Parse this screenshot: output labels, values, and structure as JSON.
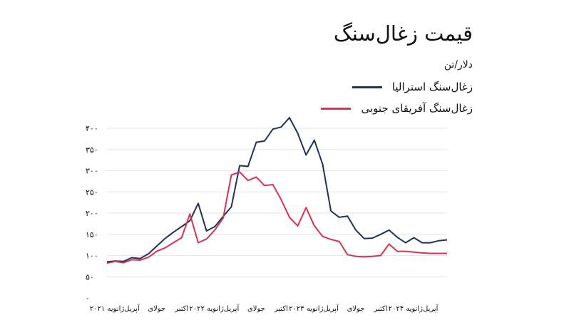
{
  "chart_data": {
    "type": "line",
    "title": "قیمت زغال‌سنگ",
    "unit": "دلار/تن",
    "ylim": [
      0,
      400
    ],
    "y_ticks": [
      "۰",
      "۵۰",
      "۱۰۰",
      "۱۵۰",
      "۲۰۰",
      "۲۵۰",
      "۳۰۰",
      "۳۵۰",
      "۴۰۰"
    ],
    "grid": true,
    "legend_position": "top-right",
    "x_ticks": [
      {
        "label": "ژانویه ۲۰۲۱",
        "x": 0
      },
      {
        "label": "آپریل",
        "x": 3
      },
      {
        "label": "جولای",
        "x": 6
      },
      {
        "label": "اکتبر",
        "x": 9
      },
      {
        "label": "ژانویه ۲۰۲۲",
        "x": 12
      },
      {
        "label": "آپریل",
        "x": 15
      },
      {
        "label": "جولای",
        "x": 18
      },
      {
        "label": "اکتبر",
        "x": 21
      },
      {
        "label": "ژانویه ۲۰۲۳",
        "x": 24
      },
      {
        "label": "آپریل",
        "x": 27
      },
      {
        "label": "جولای",
        "x": 30
      },
      {
        "label": "اکتبر",
        "x": 33
      },
      {
        "label": "ژانویه ۲۰۲۴",
        "x": 36
      },
      {
        "label": "آپریل",
        "x": 39
      }
    ],
    "series": [
      {
        "name": "زغال‌سنگ استرالیا",
        "color": "#1f3357",
        "values": [
          85,
          87,
          86,
          95,
          93,
          104,
          122,
          140,
          155,
          168,
          182,
          223,
          158,
          168,
          192,
          215,
          312,
          310,
          367,
          370,
          398,
          403,
          425,
          388,
          337,
          372,
          315,
          205,
          190,
          193,
          160,
          140,
          141,
          150,
          160,
          143,
          130,
          142,
          130,
          130,
          135,
          137
        ]
      },
      {
        "name": "زغال‌سنگ آفریقای جنوبی",
        "color": "#d9334f",
        "values": [
          82,
          86,
          83,
          90,
          89,
          96,
          110,
          118,
          130,
          142,
          198,
          130,
          139,
          160,
          188,
          290,
          297,
          277,
          285,
          265,
          267,
          232,
          190,
          170,
          213,
          170,
          145,
          138,
          133,
          102,
          98,
          97,
          98,
          100,
          127,
          110,
          110,
          108,
          106,
          105,
          105,
          105
        ]
      }
    ]
  }
}
